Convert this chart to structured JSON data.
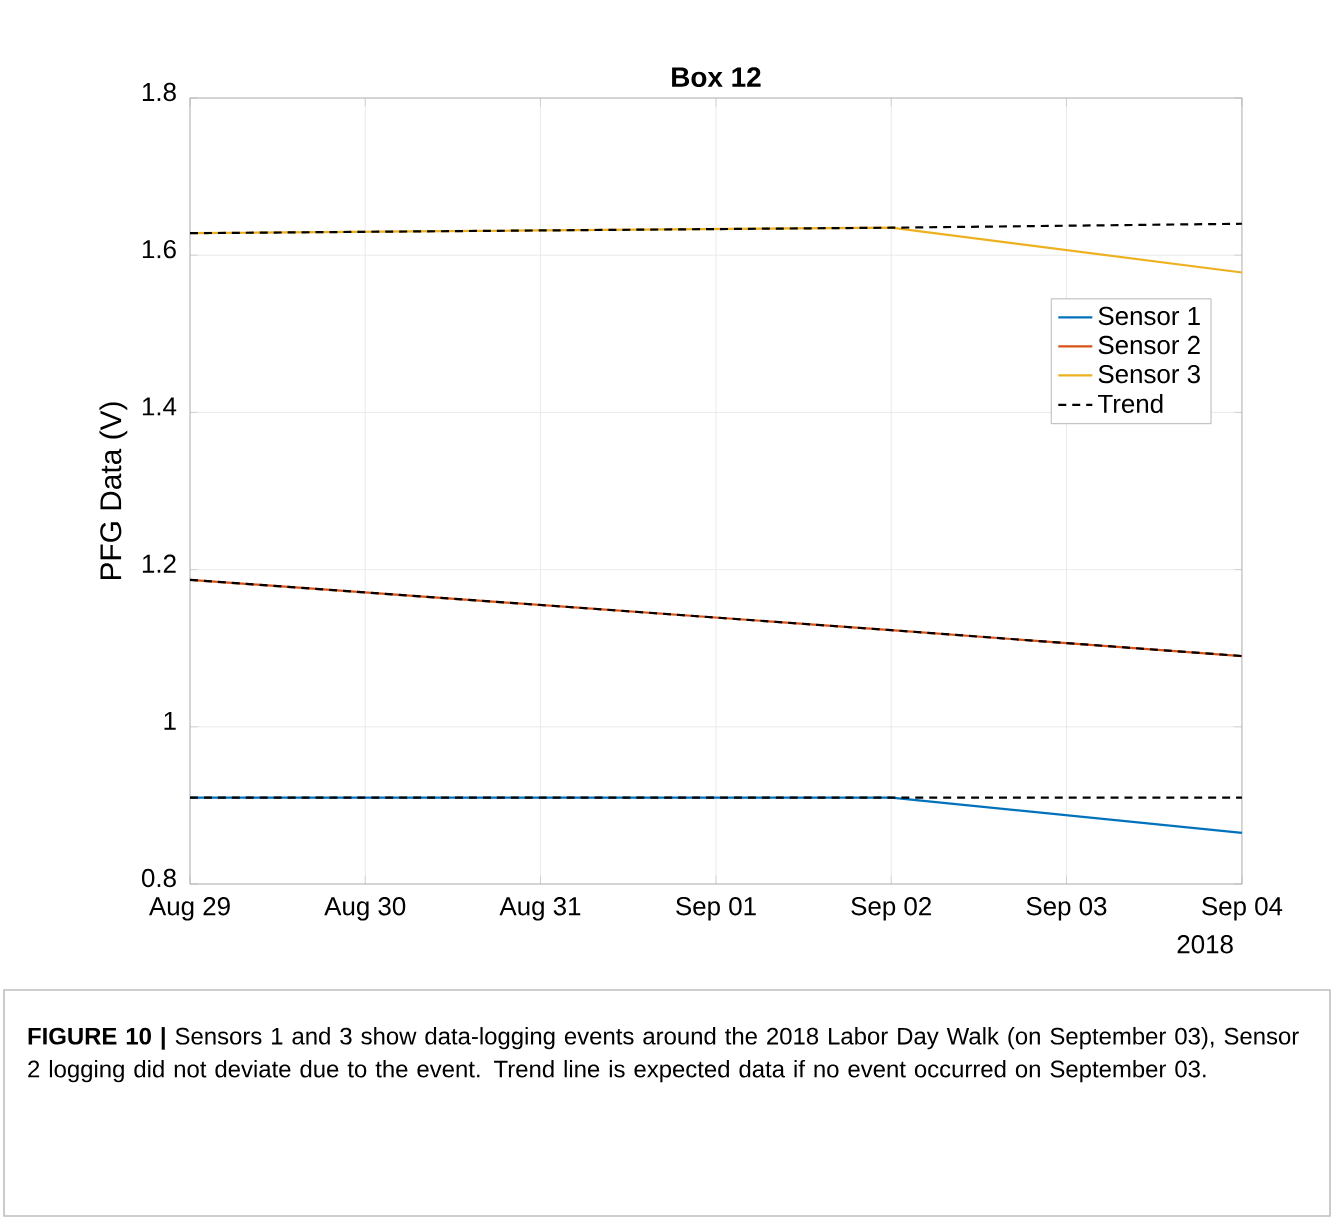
{
  "chart_data": {
    "type": "line",
    "title": "Box 12",
    "ylabel": "PFG Data (V)",
    "x": [
      "2018-08-29",
      "2018-09-02",
      "2018-09-04"
    ],
    "series": [
      {
        "name": "Sensor 1",
        "color": "#0072bd",
        "values": [
          0.91,
          0.91,
          0.865
        ]
      },
      {
        "name": "Sensor 2",
        "color": "#d95319",
        "values": [
          1.187,
          1.123,
          1.09
        ]
      },
      {
        "name": "Sensor 3",
        "color": "#edb120",
        "values": [
          1.628,
          1.635,
          1.578
        ]
      },
      {
        "name": "Trend",
        "color": "#000000",
        "line_style": "dashed",
        "values": [
          0.91,
          0.91,
          0.91
        ]
      },
      {
        "color": "#000000",
        "line_style": "dashed",
        "values": [
          1.187,
          1.123,
          1.09
        ]
      },
      {
        "color": "#000000",
        "line_style": "dashed",
        "values": [
          1.628,
          1.635,
          1.64
        ]
      }
    ],
    "xlim": [
      "2018-08-29",
      "2018-09-04"
    ],
    "xticks": [
      {
        "value": "2018-08-29",
        "label": "Aug 29"
      },
      {
        "value": "2018-08-30",
        "label": "Aug 30"
      },
      {
        "value": "2018-08-31",
        "label": "Aug 31"
      },
      {
        "value": "2018-09-01",
        "label": "Sep 01"
      },
      {
        "value": "2018-09-02",
        "label": "Sep 02"
      },
      {
        "value": "2018-09-03",
        "label": "Sep 03"
      },
      {
        "value": "2018-09-04",
        "label": "Sep 04"
      }
    ],
    "ylim": [
      0.8,
      1.8
    ],
    "yticks": [
      0.8,
      1,
      1.2,
      1.4,
      1.6,
      1.8
    ],
    "grid": true,
    "legend": "right",
    "annotations": [
      "2018",
      "**FIGURE 10 |** Sensors 1 and 3 show data-logging events around the 2018 Labor Day Walk (on September 03), Sensor 2 logging did not deviate due to the event. Trend line is expected data if no event occurred on September 03."
    ]
  }
}
